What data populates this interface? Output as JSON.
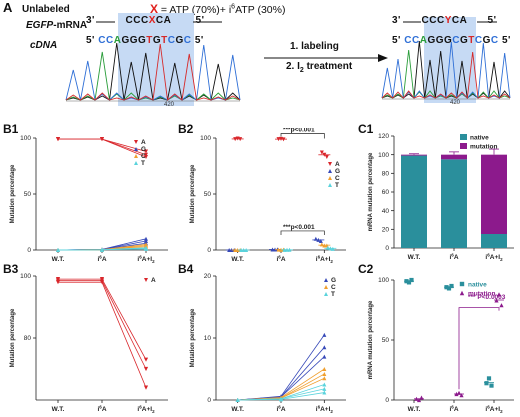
{
  "panel_a": {
    "label": "A",
    "unlabeled": "Unlabeled",
    "x_marker": "X",
    "x_def": " = ATP (70%)+ i",
    "x_def_sup": "6",
    "x_def_tail": "ATP (30%)",
    "mrna_prefix": "EGFP",
    "mrna_suffix": "-mRNA",
    "cdna_label": "cDNA",
    "mrna_left": "3'",
    "mrna_seq_left": [
      "C",
      "C",
      "C"
    ],
    "mrna_seq_x": "X",
    "mrna_seq_right": [
      "C",
      "A"
    ],
    "mrna_right": "5'",
    "cdna_left": "5'",
    "cdna_seq": [
      "C",
      "C",
      "A",
      "G",
      "G",
      "G",
      "T",
      "G",
      "T",
      "C",
      "G",
      "C"
    ],
    "cdna_right": "5'",
    "step1": "1. labeling",
    "step2": "2. I",
    "step2_sub": "2",
    "step2_tail": " treatment",
    "right_mrna_left": "3'",
    "right_mrna_seq_left": [
      "C",
      "C",
      "C"
    ],
    "right_mrna_y": "Y",
    "right_mrna_seq_right": [
      "C",
      "A"
    ],
    "right_mrna_right": "5'",
    "right_cdna_left": "5'",
    "right_cdna_seq": [
      "C",
      "C",
      "A",
      "G",
      "G",
      "G",
      "C",
      "G",
      "T",
      "C",
      "G",
      "C"
    ],
    "right_cdna_right": "5'",
    "trace_pos_left": "420",
    "trace_pos_right": "420",
    "colors": {
      "C": "#2f6fd6",
      "A": "#2a9d3a",
      "G": "#111111",
      "T": "#d62a2a",
      "X": "#e0201c",
      "shade": "#bcd3f2"
    }
  },
  "chart_data": [
    {
      "id": "B1",
      "type": "line",
      "ylabel": "Mutation percentage",
      "categories": [
        "W.T.",
        "i6A",
        "i6A+I2"
      ],
      "ylim": [
        0,
        100
      ],
      "yticks": [
        0,
        50,
        100
      ],
      "legend": [
        "A",
        "G",
        "C",
        "T"
      ],
      "series": [
        {
          "name": "A",
          "color": "#d9262b",
          "values": [
            [
              99,
              99,
              88
            ],
            [
              99,
              99,
              85
            ],
            [
              99,
              99,
              83
            ]
          ]
        },
        {
          "name": "G",
          "color": "#3648b8",
          "values": [
            [
              0,
              0.5,
              10
            ],
            [
              0,
              0.5,
              8
            ],
            [
              0,
              0.5,
              6
            ]
          ]
        },
        {
          "name": "C",
          "color": "#f0a030",
          "values": [
            [
              0,
              0.3,
              5
            ],
            [
              0,
              0.3,
              4
            ],
            [
              0,
              0.3,
              3
            ]
          ]
        },
        {
          "name": "T",
          "color": "#5ad3dc",
          "values": [
            [
              0,
              0.2,
              2
            ],
            [
              0,
              0.2,
              1.5
            ],
            [
              0,
              0.2,
              1
            ]
          ]
        }
      ]
    },
    {
      "id": "B2",
      "type": "scatter",
      "ylabel": "Mutation percentage",
      "categories": [
        "W.T.",
        "i6A",
        "i6A+I2"
      ],
      "ylim": [
        0,
        100
      ],
      "yticks": [
        0,
        50,
        100
      ],
      "legend": [
        "A",
        "G",
        "C",
        "T"
      ],
      "annotations": [
        "***p<0.001",
        "***p<0.001"
      ],
      "series": [
        {
          "name": "A",
          "color": "#d9262b",
          "values": [
            [
              99,
              99.5,
              99
            ],
            [
              99,
              99.2,
              98.8
            ],
            [
              87,
              85,
              83
            ]
          ]
        },
        {
          "name": "G",
          "color": "#3648b8",
          "values": [
            [
              0,
              0,
              0
            ],
            [
              0.5,
              0.4,
              0.6
            ],
            [
              10,
              9,
              8
            ]
          ]
        },
        {
          "name": "C",
          "color": "#f0a030",
          "values": [
            [
              0,
              0,
              0
            ],
            [
              0.3,
              0.2,
              0.3
            ],
            [
              5,
              4,
              4
            ]
          ]
        },
        {
          "name": "T",
          "color": "#5ad3dc",
          "values": [
            [
              0,
              0,
              0
            ],
            [
              0.1,
              0.2,
              0.2
            ],
            [
              2,
              1.5,
              1
            ]
          ]
        }
      ]
    },
    {
      "id": "B3",
      "type": "line",
      "ylabel": "Mutation percentage",
      "categories": [
        "W.T.",
        "i6A",
        "i6A+I2"
      ],
      "ylim": [
        60,
        100
      ],
      "yticks": [
        80,
        100
      ],
      "legend": [
        "A"
      ],
      "series": [
        {
          "name": "A",
          "color": "#d9262b",
          "values": [
            [
              99,
              99,
              73
            ],
            [
              98.5,
              98.5,
              70
            ],
            [
              98,
              98,
              64
            ]
          ]
        }
      ]
    },
    {
      "id": "B4",
      "type": "line",
      "ylabel": "Mutation percentage",
      "categories": [
        "W.T.",
        "i6A",
        "i6A+I2"
      ],
      "ylim": [
        0,
        20
      ],
      "yticks": [
        0,
        10,
        20
      ],
      "legend": [
        "G",
        "C",
        "T"
      ],
      "series": [
        {
          "name": "G",
          "color": "#3648b8",
          "values": [
            [
              0,
              0.6,
              10.5
            ],
            [
              0,
              0.5,
              8.5
            ],
            [
              0,
              0.5,
              7
            ]
          ]
        },
        {
          "name": "C",
          "color": "#f0a030",
          "values": [
            [
              0,
              0.4,
              5
            ],
            [
              0,
              0.3,
              4.2
            ],
            [
              0,
              0.3,
              3.5
            ]
          ]
        },
        {
          "name": "T",
          "color": "#5ad3dc",
          "values": [
            [
              0,
              0.2,
              2.5
            ],
            [
              0,
              0.2,
              1.8
            ],
            [
              0,
              0.1,
              1.2
            ]
          ]
        }
      ]
    },
    {
      "id": "C1",
      "type": "bar",
      "ylabel": "mRNA mutation percentage",
      "categories": [
        "W.T.",
        "i6A",
        "i6A+I2"
      ],
      "ylim": [
        0,
        120
      ],
      "yticks": [
        0,
        20,
        40,
        60,
        80,
        100,
        120
      ],
      "legend": [
        "native",
        "mutation"
      ],
      "series": [
        {
          "name": "native",
          "color": "#2a8f9c",
          "values": [
            99,
            95,
            15
          ]
        },
        {
          "name": "mutation",
          "color": "#8c1a8c",
          "values": [
            1,
            5,
            85
          ]
        }
      ]
    },
    {
      "id": "C2",
      "type": "scatter",
      "ylabel": "mRNA mutation percentage",
      "categories": [
        "W.T.",
        "i6A",
        "i6A+I2"
      ],
      "ylim": [
        0,
        100
      ],
      "yticks": [
        0,
        50,
        100
      ],
      "legend": [
        "native",
        "mutation"
      ],
      "annotations": [
        "*** P<0.0003"
      ],
      "series": [
        {
          "name": "native",
          "color": "#2a8f9c",
          "values": [
            [
              99,
              98,
              100
            ],
            [
              94,
              93,
              95
            ],
            [
              14,
              18,
              12
            ]
          ]
        },
        {
          "name": "mutation",
          "color": "#8c1a8c",
          "values": [
            [
              1,
              0,
              2
            ],
            [
              5,
              6,
              4
            ],
            [
              83,
              88,
              79
            ]
          ]
        }
      ]
    }
  ],
  "labels": {
    "B1": "B1",
    "B2": "B2",
    "B3": "B3",
    "B4": "B4",
    "C1": "C1",
    "C2": "C2"
  }
}
